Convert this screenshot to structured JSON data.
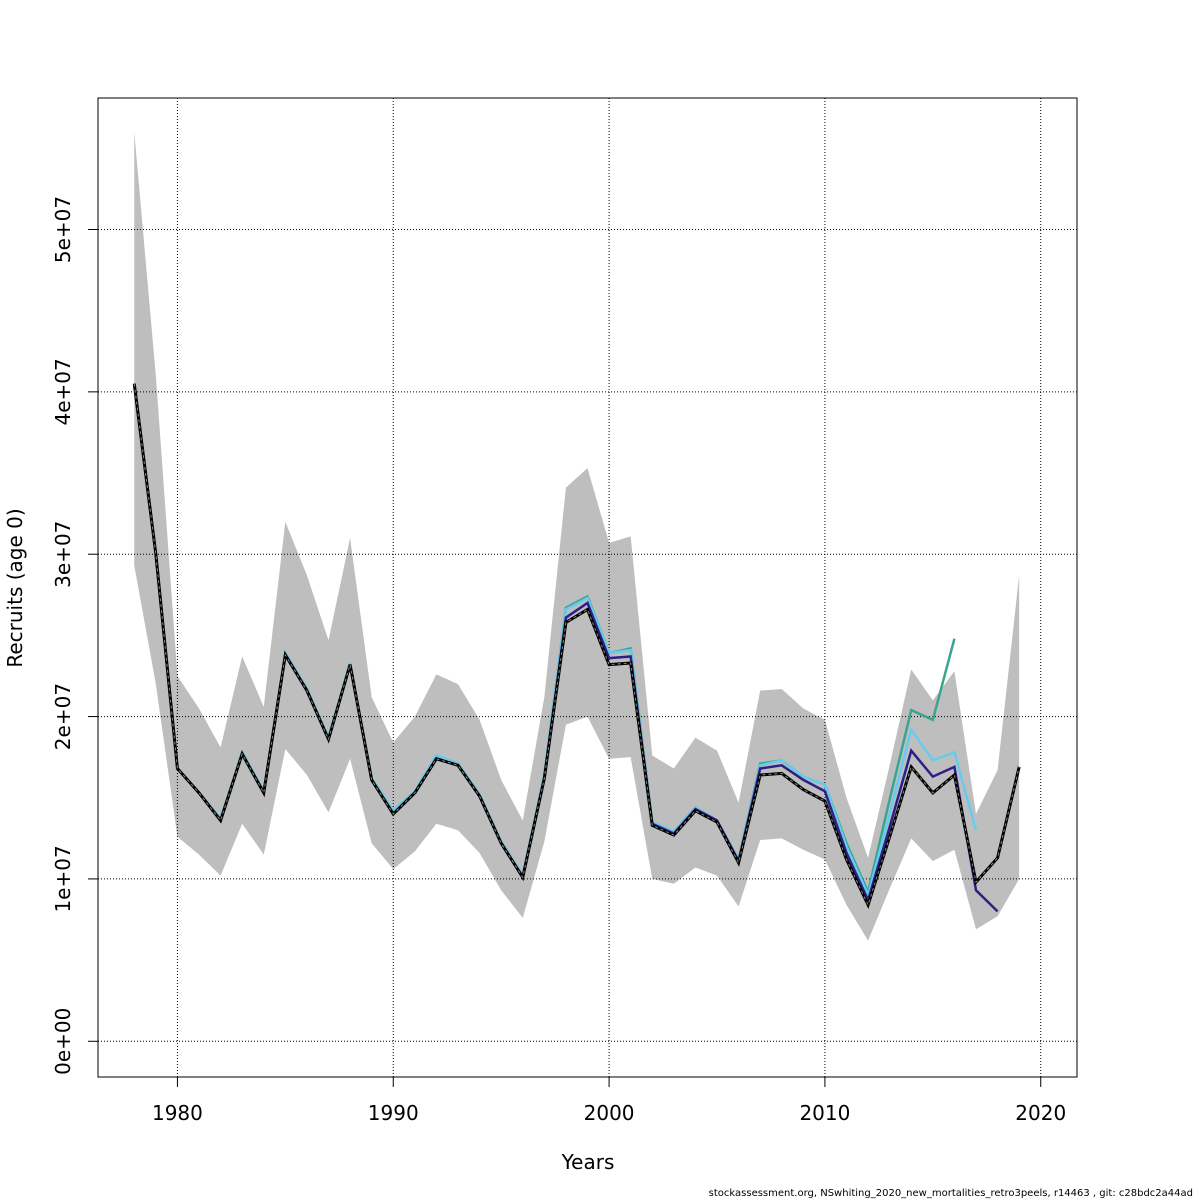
{
  "chart_data": {
    "type": "line",
    "xlabel": "Years",
    "ylabel": "Recruits (age 0)",
    "footer": "stockassessment.org, NSwhiting_2020_new_mortalities_retro3peels, r14463 , git: c28bdc2a44ad",
    "x": [
      1978,
      1979,
      1980,
      1981,
      1982,
      1983,
      1984,
      1985,
      1986,
      1987,
      1988,
      1989,
      1990,
      1991,
      1992,
      1993,
      1994,
      1995,
      1996,
      1997,
      1998,
      1999,
      2000,
      2001,
      2002,
      2003,
      2004,
      2005,
      2006,
      2007,
      2008,
      2009,
      2010,
      2011,
      2012,
      2013,
      2014,
      2015,
      2016,
      2017,
      2018,
      2019
    ],
    "xlim": [
      1976.32,
      2021.68
    ],
    "xticks": [
      1980,
      1990,
      2000,
      2010,
      2020
    ],
    "ylim": [
      -2200000,
      58100000
    ],
    "yticks": [
      {
        "value": 0,
        "label": "0e+00"
      },
      {
        "value": 10000000,
        "label": "1e+07"
      },
      {
        "value": 20000000,
        "label": "2e+07"
      },
      {
        "value": 30000000,
        "label": "3e+07"
      },
      {
        "value": 40000000,
        "label": "4e+07"
      },
      {
        "value": 50000000,
        "label": "5e+07"
      }
    ],
    "grid": true,
    "band": {
      "color": "#bebebe",
      "upper": [
        56000000,
        41000000,
        22500000,
        20500000,
        18100000,
        23700000,
        20600000,
        32000000,
        28700000,
        24700000,
        31000000,
        21200000,
        18400000,
        20000000,
        22600000,
        22000000,
        19800000,
        16100000,
        13600000,
        21200000,
        34100000,
        35300000,
        30700000,
        31100000,
        17600000,
        16800000,
        18700000,
        17900000,
        14700000,
        21600000,
        21700000,
        20500000,
        19800000,
        15000000,
        11300000,
        17000000,
        22900000,
        21000000,
        22800000,
        14000000,
        16700000,
        28700000
      ],
      "lower": [
        29300000,
        22000000,
        12600000,
        11500000,
        10200000,
        13400000,
        11500000,
        18000000,
        16400000,
        14100000,
        17400000,
        12200000,
        10600000,
        11700000,
        13400000,
        13000000,
        11600000,
        9300000,
        7600000,
        12300000,
        19500000,
        20000000,
        17400000,
        17500000,
        10000000,
        9700000,
        10700000,
        10200000,
        8300000,
        12400000,
        12500000,
        11800000,
        11200000,
        8400000,
        6200000,
        9400000,
        12500000,
        11100000,
        11800000,
        6900000,
        7700000,
        10000000
      ]
    },
    "series": [
      {
        "color": "#000000",
        "dashed": true,
        "values": [
          40500000,
          30000000,
          16800000,
          15300000,
          13600000,
          17700000,
          15300000,
          23800000,
          21600000,
          18600000,
          23200000,
          16100000,
          14000000,
          15300000,
          17400000,
          17000000,
          15100000,
          12200000,
          10100000,
          16200000,
          25800000,
          26600000,
          23200000,
          23300000,
          13300000,
          12700000,
          14200000,
          13500000,
          11000000,
          16400000,
          16500000,
          15500000,
          14800000,
          11200000,
          8400000,
          12600000,
          16900000,
          15300000,
          16400000,
          9800000,
          11300000,
          16900000
        ]
      },
      {
        "color": "#2e1f86",
        "values": [
          40500000,
          30000000,
          16800000,
          15300000,
          13600000,
          17700000,
          15300000,
          23800000,
          21600000,
          18600000,
          23200000,
          16100000,
          14000000,
          15300000,
          17400000,
          17000000,
          15100000,
          12200000,
          10100000,
          16200000,
          26100000,
          27000000,
          23600000,
          23700000,
          13400000,
          12800000,
          14300000,
          13600000,
          11100000,
          16800000,
          17000000,
          16100000,
          15400000,
          11600000,
          8700000,
          13200000,
          17900000,
          16300000,
          16900000,
          9300000,
          8000000,
          null
        ]
      },
      {
        "color": "#66ccee",
        "values": [
          40500000,
          30000000,
          16800000,
          15300000,
          13700000,
          17800000,
          15400000,
          23900000,
          21700000,
          18700000,
          23300000,
          16200000,
          14200000,
          15400000,
          17600000,
          17100000,
          15200000,
          12300000,
          10200000,
          16400000,
          26600000,
          27300000,
          23900000,
          24100000,
          13500000,
          12900000,
          14400000,
          13600000,
          11200000,
          17000000,
          17300000,
          16300000,
          15800000,
          12000000,
          9000000,
          14000000,
          19200000,
          17300000,
          17800000,
          13000000,
          null,
          null
        ]
      },
      {
        "color": "#3aa58f",
        "values": [
          40500000,
          30000000,
          16800000,
          15300000,
          13700000,
          17800000,
          15400000,
          23900000,
          21700000,
          18700000,
          23300000,
          16200000,
          14200000,
          15400000,
          17600000,
          17100000,
          15200000,
          12300000,
          10200000,
          16400000,
          26700000,
          27400000,
          23900000,
          24200000,
          13500000,
          12900000,
          14400000,
          13600000,
          11200000,
          17100000,
          17300000,
          16300000,
          15800000,
          12200000,
          9200000,
          14900000,
          20400000,
          19800000,
          24800000,
          null,
          null,
          null
        ]
      }
    ]
  }
}
